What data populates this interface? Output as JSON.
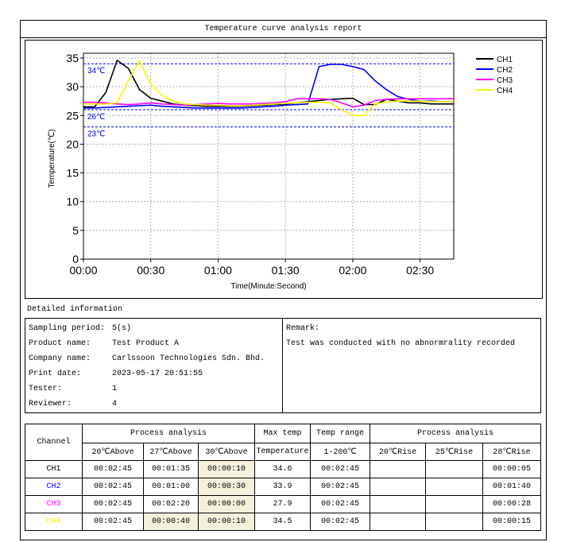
{
  "header": {
    "title": "Temperature curve analysis report"
  },
  "chart_data": {
    "type": "line",
    "xlabel": "Time(Minute:Second)",
    "ylabel": "Temperature(℃)",
    "x": [
      0,
      5,
      10,
      15,
      20,
      25,
      30,
      35,
      40,
      45,
      50,
      55,
      60,
      65,
      70,
      75,
      80,
      85,
      90,
      95,
      100,
      105,
      110,
      115,
      120,
      125,
      130,
      135,
      140,
      145,
      150,
      155,
      160,
      165
    ],
    "xlim": [
      0,
      165
    ],
    "xticks": [
      {
        "value": 0,
        "label": "00:00"
      },
      {
        "value": 30,
        "label": "00:30"
      },
      {
        "value": 60,
        "label": "01:00"
      },
      {
        "value": 90,
        "label": "01:30"
      },
      {
        "value": 120,
        "label": "02:00"
      },
      {
        "value": 150,
        "label": "02:30"
      }
    ],
    "ylim": [
      0,
      35
    ],
    "yticks": [
      0,
      5,
      10,
      15,
      20,
      25,
      30,
      35
    ],
    "grid": true,
    "legend": "upper right",
    "reference_lines": [
      {
        "value": 34,
        "label": "34℃",
        "color": "#0000ff"
      },
      {
        "value": 26,
        "label": "26℃",
        "color": "#0000ff"
      },
      {
        "value": 23,
        "label": "23℃",
        "color": "#0000ff"
      }
    ],
    "series": [
      {
        "name": "CH1",
        "color": "#000000",
        "values": [
          26.5,
          26.5,
          29,
          34.6,
          33.2,
          29.5,
          28,
          27.5,
          27,
          26.8,
          26.7,
          26.6,
          26.6,
          26.6,
          26.6,
          26.7,
          26.8,
          26.9,
          27,
          27.2,
          27.4,
          27.6,
          27.8,
          27.9,
          28,
          26.9,
          26.9,
          27.8,
          27.5,
          27.2,
          27.2,
          27,
          27,
          27
        ]
      },
      {
        "name": "CH2",
        "color": "#0000ff",
        "values": [
          26.3,
          26.3,
          26.4,
          26.5,
          26.6,
          26.7,
          26.8,
          26.6,
          26.5,
          26.4,
          26.3,
          26.3,
          26.3,
          26.3,
          26.3,
          26.4,
          26.5,
          26.6,
          26.8,
          26.9,
          27,
          33.5,
          33.9,
          33.9,
          33.5,
          33,
          31,
          29.5,
          28.3,
          27.8,
          27.5,
          27.5,
          27.4,
          27.4
        ]
      },
      {
        "name": "CH3",
        "color": "#ff00ff",
        "values": [
          27.3,
          27.3,
          27.2,
          27,
          26.9,
          27,
          27.2,
          27,
          26.9,
          26.8,
          26.9,
          27,
          27.1,
          27,
          27,
          27,
          27.1,
          27.2,
          27.4,
          27.9,
          27.9,
          27.9,
          27.8,
          27.2,
          26.5,
          26.8,
          27.6,
          27.8,
          27.9,
          27.9,
          27.9,
          27.9,
          27.9,
          27.9
        ]
      },
      {
        "name": "CH4",
        "color": "#f5f500",
        "values": [
          27,
          27,
          27,
          27.2,
          31,
          34.5,
          30.5,
          28.5,
          27.5,
          27,
          26.9,
          26.8,
          26.8,
          26.7,
          26.7,
          26.8,
          26.9,
          27,
          27.1,
          27.2,
          27.3,
          27.3,
          27.2,
          26,
          25,
          25,
          27,
          27.3,
          27.5,
          27.5,
          27.5,
          27.4,
          27.4,
          27.4
        ]
      }
    ]
  },
  "details": {
    "title": "Detailed information",
    "fields": [
      {
        "label": "Sampling period:",
        "value": "5(s)"
      },
      {
        "label": "Product name:",
        "value": "Test Product A"
      },
      {
        "label": "Company name:",
        "value": "Carlssoon Technologies Sdn. Bhd."
      },
      {
        "label": "Print date:",
        "value": "2023-05-17 20:51:55"
      },
      {
        "label": "Tester:",
        "value": "1"
      },
      {
        "label": "Reviewer:",
        "value": "4"
      }
    ],
    "remark_label": "Remark:",
    "remark": "Test was conducted with no abnormrality recorded"
  },
  "table": {
    "header_row1": [
      "Channel",
      "Process analysis",
      "Max temp",
      "Temp range",
      "Process analysis"
    ],
    "header_row2": [
      "20℃Above",
      "27℃Above",
      "30℃Above",
      "Temperature",
      "1-200℃",
      "20℃Rise",
      "25℃Rise",
      "28℃Rise"
    ],
    "rows": [
      [
        "CH1",
        "00:02:45",
        "00:01:35",
        "00:00:10",
        "34.6",
        "00:02:45",
        null,
        null,
        "00:00:05"
      ],
      [
        "CH2",
        "00:02:45",
        "00:01:00",
        "00:00:30",
        "33.9",
        "00:02:45",
        null,
        null,
        "00:01:40"
      ],
      [
        "CH3",
        "00:02:45",
        "00:02:20",
        "00:00:00",
        "27.9",
        "00:02:45",
        null,
        null,
        "00:00:28"
      ],
      [
        "CH4",
        "00:02:45",
        "00:00:40",
        "00:00:10",
        "34.5",
        "00:02:45",
        null,
        null,
        "00:00:15"
      ]
    ],
    "highlighted_cells": [
      [
        0,
        3
      ],
      [
        1,
        3
      ],
      [
        2,
        3
      ],
      [
        3,
        3
      ],
      [
        3,
        2
      ]
    ]
  }
}
